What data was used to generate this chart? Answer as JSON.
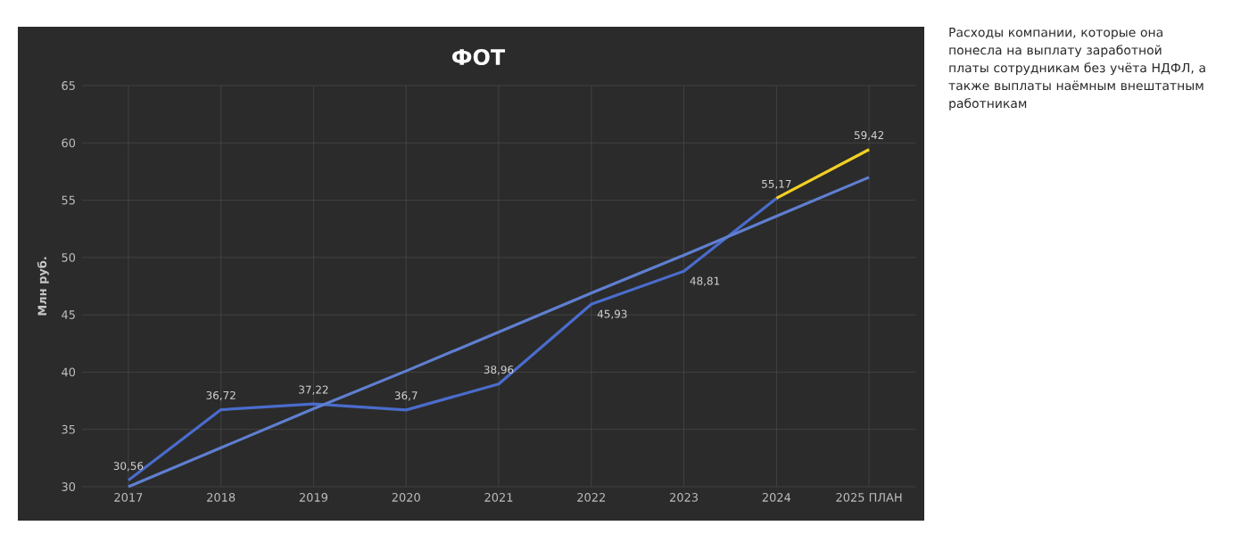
{
  "chart_data": {
    "type": "line",
    "title": "ФОТ",
    "ylabel": "Млн руб.",
    "categories": [
      "2017",
      "2018",
      "2019",
      "2020",
      "2021",
      "2022",
      "2023",
      "2024",
      "2025 ПЛАН"
    ],
    "series": [
      {
        "color": "#4a6ccc",
        "values": [
          30.56,
          36.72,
          37.22,
          36.7,
          38.96,
          45.93,
          48.81,
          55.17,
          null
        ],
        "value_labels": [
          "30,56",
          "36,72",
          "37,22",
          "36,7",
          "38,96",
          "45,93",
          "48,81",
          "55,17",
          null
        ]
      },
      {
        "color": "#f2d024",
        "values": [
          null,
          null,
          null,
          null,
          null,
          null,
          null,
          55.17,
          59.42
        ],
        "value_labels": [
          null,
          null,
          null,
          null,
          null,
          null,
          null,
          null,
          "59,42"
        ]
      },
      {
        "color": "#5f7fd0",
        "values": [
          30.0,
          33.4,
          36.8,
          40.1,
          43.5,
          46.9,
          50.2,
          53.6,
          57.0
        ]
      }
    ],
    "ylim": [
      30,
      65
    ],
    "yticks": [
      30,
      35,
      40,
      45,
      50,
      55,
      60,
      65
    ],
    "grid": true,
    "marker": "none",
    "line_style": "solid",
    "annotations": [
      "Расходы компании, которые она понесла на выплату заработной платы сотрудникам без учёта НДФЛ, а также выплаты наёмным внештатным работникам"
    ]
  }
}
